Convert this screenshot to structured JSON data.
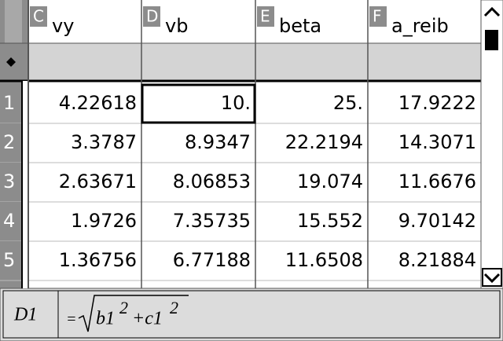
{
  "columns": [
    {
      "letter": "C",
      "name": "vy"
    },
    {
      "letter": "D",
      "name": "vb"
    },
    {
      "letter": "E",
      "name": "beta"
    },
    {
      "letter": "F",
      "name": "a_reib"
    }
  ],
  "rows": [
    {
      "number": "1",
      "cells": [
        "4.22618",
        "10.",
        "25.",
        "17.9222"
      ]
    },
    {
      "number": "2",
      "cells": [
        "3.3787",
        "8.9347",
        "22.2194",
        "14.3071"
      ]
    },
    {
      "number": "3",
      "cells": [
        "2.63671",
        "8.06853",
        "19.074",
        "11.6676"
      ]
    },
    {
      "number": "4",
      "cells": [
        "1.9726",
        "7.35735",
        "15.552",
        "9.70142"
      ]
    },
    {
      "number": "5",
      "cells": [
        "1.36756",
        "6.77188",
        "11.6508",
        "8.21884"
      ]
    }
  ],
  "formula_bar": {
    "cell": "D1",
    "equals": "=",
    "parts": [
      "b1",
      "2",
      "+c1",
      "2"
    ]
  }
}
